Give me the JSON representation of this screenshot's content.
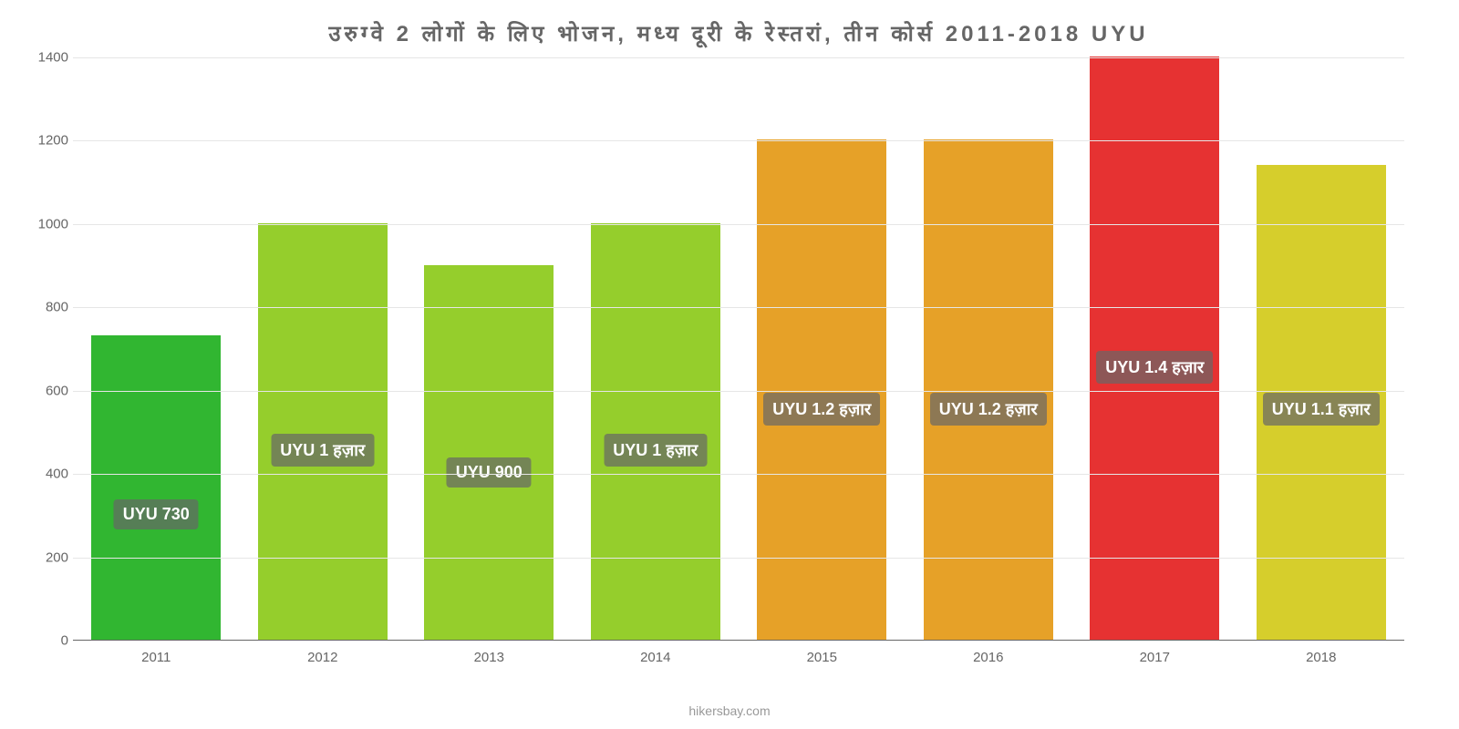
{
  "chart": {
    "type": "bar",
    "title": "उरुग्वे   2 लोगों   के   लिए   भोजन, मध्य   दूरी   के   रेस्तरां, तीन   कोर्स   2011-2018 UYU",
    "title_fontsize": 24,
    "title_color": "#666666",
    "categories": [
      "2011",
      "2012",
      "2013",
      "2014",
      "2015",
      "2016",
      "2017",
      "2018"
    ],
    "values": [
      730,
      1000,
      900,
      1000,
      1200,
      1200,
      1400,
      1140
    ],
    "bar_labels": [
      "UYU 730",
      "UYU 1 हज़ार",
      "UYU 900",
      "UYU 1 हज़ार",
      "UYU 1.2 हज़ार",
      "UYU 1.2 हज़ार",
      "UYU 1.4 हज़ार",
      "UYU 1.1 हज़ार"
    ],
    "bar_colors": [
      "#31b631",
      "#95ce2c",
      "#95ce2c",
      "#95ce2c",
      "#e6a128",
      "#e6a128",
      "#e63232",
      "#d6ce2c"
    ],
    "label_offsets": [
      300,
      450,
      400,
      450,
      550,
      550,
      650,
      550
    ],
    "ylim": [
      0,
      1400
    ],
    "ytick_step": 200,
    "grid_color": "#e6e6e6",
    "axis_color": "#666666",
    "background_color": "#ffffff",
    "tick_fontsize": 15,
    "bar_label_fontsize": 18,
    "bar_label_bg": "rgba(102,102,102,0.7)",
    "bar_label_color": "#ffffff",
    "bar_width_ratio": 0.78,
    "attribution": "hikersbay.com",
    "attribution_color": "#999999",
    "attribution_fontsize": 14
  }
}
